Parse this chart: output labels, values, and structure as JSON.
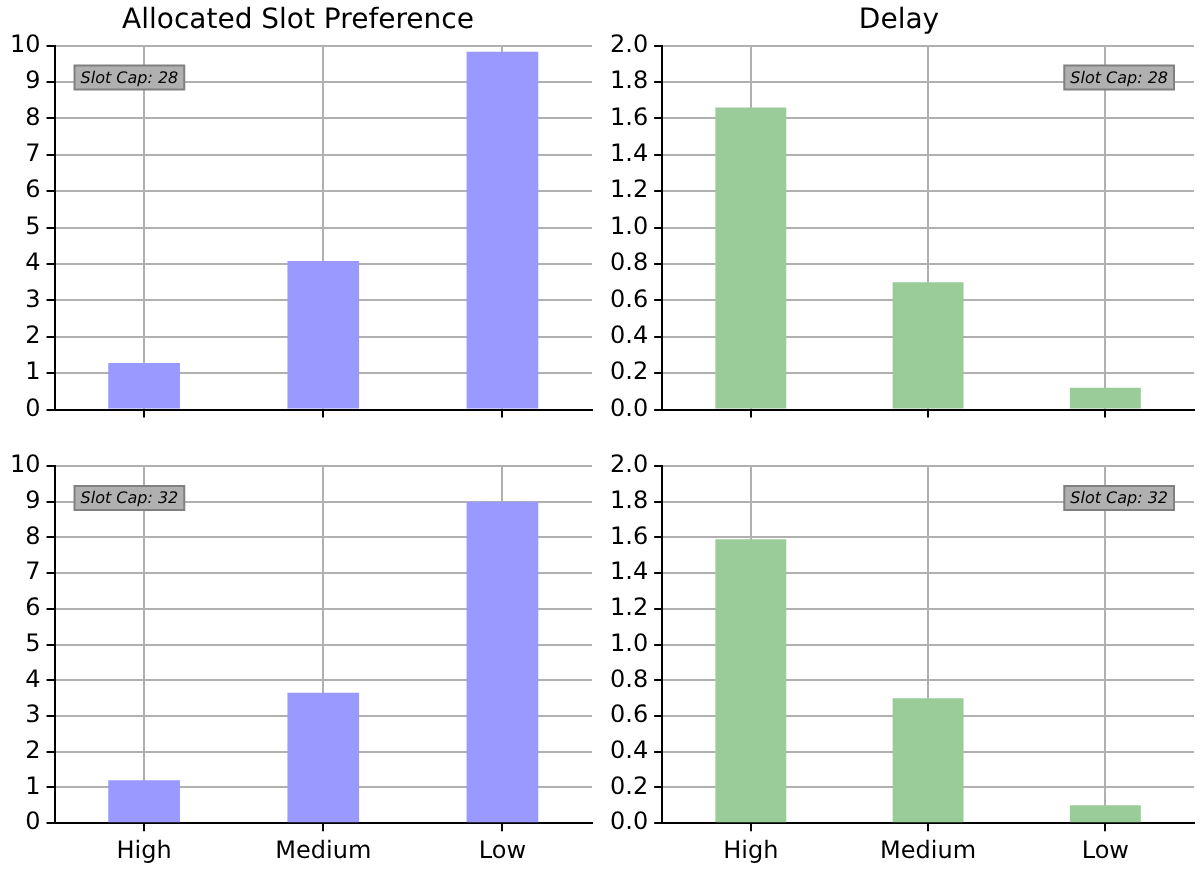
{
  "chart_data": [
    {
      "type": "bar",
      "title": "Allocated Slot Preference",
      "categories": [
        null,
        null,
        null
      ],
      "values": [
        1.28,
        4.08,
        9.83
      ],
      "color": "#9999ff",
      "ylim": [
        0,
        10
      ],
      "yticks": [
        0,
        1,
        2,
        3,
        4,
        5,
        6,
        7,
        8,
        9,
        10
      ],
      "grid": true,
      "tick_labels": "y",
      "annotations": [
        "Slot Cap: 28"
      ]
    },
    {
      "type": "bar",
      "title": "Delay",
      "categories": [
        null,
        null,
        null
      ],
      "values": [
        1.66,
        0.7,
        0.12
      ],
      "color": "#99cc99",
      "ylim": [
        0,
        2
      ],
      "yticks": [
        {
          "value": 0,
          "label": "0.0"
        },
        {
          "value": 0.2,
          "label": "0.2"
        },
        {
          "value": 0.4,
          "label": "0.4"
        },
        {
          "value": 0.6,
          "label": "0.6"
        },
        {
          "value": 0.8,
          "label": "0.8"
        },
        {
          "value": 1,
          "label": "1.0"
        },
        {
          "value": 1.2,
          "label": "1.2"
        },
        {
          "value": 1.4,
          "label": "1.4"
        },
        {
          "value": 1.6,
          "label": "1.6"
        },
        {
          "value": 1.8,
          "label": "1.8"
        },
        {
          "value": 2,
          "label": "2.0"
        }
      ],
      "grid": true,
      "tick_labels": "y",
      "annotations": [
        "Slot Cap: 28"
      ]
    },
    {
      "type": "bar",
      "categories": [
        "High",
        "Medium",
        "Low"
      ],
      "values": [
        1.2,
        3.65,
        9.0
      ],
      "color": "#9999ff",
      "ylim": [
        0,
        10
      ],
      "yticks": [
        0,
        1,
        2,
        3,
        4,
        5,
        6,
        7,
        8,
        9,
        10
      ],
      "grid": true,
      "annotations": [
        "Slot Cap: 32"
      ]
    },
    {
      "type": "bar",
      "categories": [
        "High",
        "Medium",
        "Low"
      ],
      "values": [
        1.59,
        0.7,
        0.1
      ],
      "color": "#99cc99",
      "ylim": [
        0,
        2
      ],
      "yticks": [
        {
          "value": 0,
          "label": "0.0"
        },
        {
          "value": 0.2,
          "label": "0.2"
        },
        {
          "value": 0.4,
          "label": "0.4"
        },
        {
          "value": 0.6,
          "label": "0.6"
        },
        {
          "value": 0.8,
          "label": "0.8"
        },
        {
          "value": 1,
          "label": "1.0"
        },
        {
          "value": 1.2,
          "label": "1.2"
        },
        {
          "value": 1.4,
          "label": "1.4"
        },
        {
          "value": 1.6,
          "label": "1.6"
        },
        {
          "value": 1.8,
          "label": "1.8"
        },
        {
          "value": 2,
          "label": "2.0"
        }
      ],
      "grid": true,
      "annotations": [
        "Slot Cap: 32"
      ]
    }
  ]
}
